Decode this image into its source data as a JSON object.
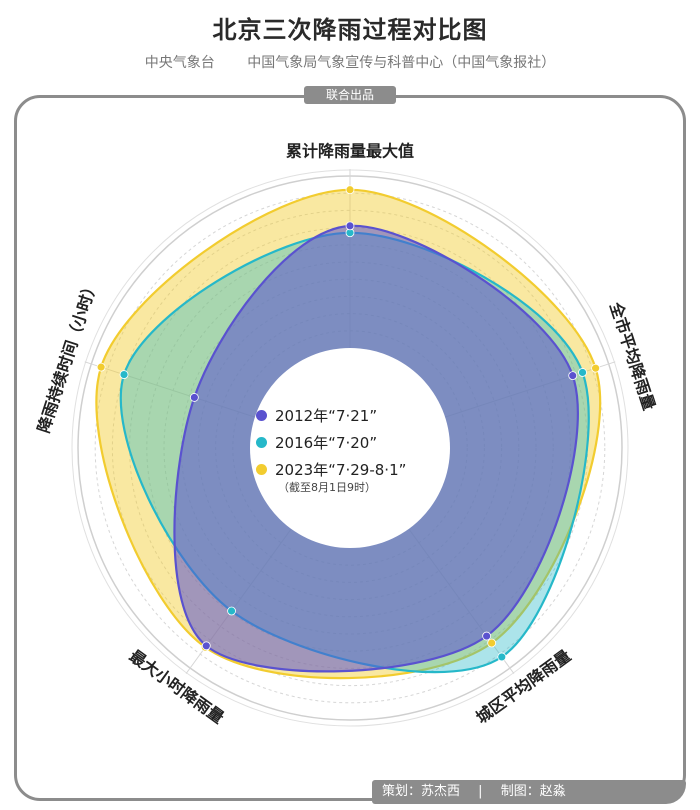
{
  "header": {
    "title": "北京三次降雨过程对比图",
    "source_left": "中央气象台",
    "source_right": "中国气象局气象宣传与科普中心（中国气象报社）",
    "badge": "联合出品"
  },
  "footer": {
    "planner": "策划：苏杰西",
    "separator": "|",
    "designer": "制图：赵淼"
  },
  "legend": {
    "note": "（截至8月1日9时）"
  },
  "colors": {
    "background": "#ffffff",
    "frame": "#8c8c8c",
    "grid": "#d6d6d6",
    "series_2012": "#5a52cf",
    "series_2016": "#26b8c9",
    "series_2023": "#f2cc2f"
  },
  "chart_data": {
    "type": "radar",
    "axes": [
      "累计降雨量最大值",
      "全市平均降雨量",
      "城区平均降雨量",
      "最大小时降雨量",
      "降雨持续时间（小时）"
    ],
    "axis_angles_deg": [
      0,
      72,
      144,
      216,
      288
    ],
    "value_range": [
      0,
      1
    ],
    "series": [
      {
        "name": "2012年“7·21”",
        "color": "#5a52cf",
        "fill_opacity": 0.55,
        "values": [
          0.71,
          0.78,
          0.77,
          0.84,
          0.37
        ]
      },
      {
        "name": "2016年“7·20”",
        "color": "#26b8c9",
        "fill_opacity": 0.38,
        "values": [
          0.67,
          0.84,
          0.92,
          0.59,
          0.8
        ]
      },
      {
        "name": "2023年“7·29-8·1”",
        "color": "#f2cc2f",
        "fill_opacity": 0.45,
        "values": [
          0.92,
          0.92,
          0.82,
          0.85,
          0.94
        ]
      }
    ],
    "grid": true,
    "legend_position": "center"
  }
}
